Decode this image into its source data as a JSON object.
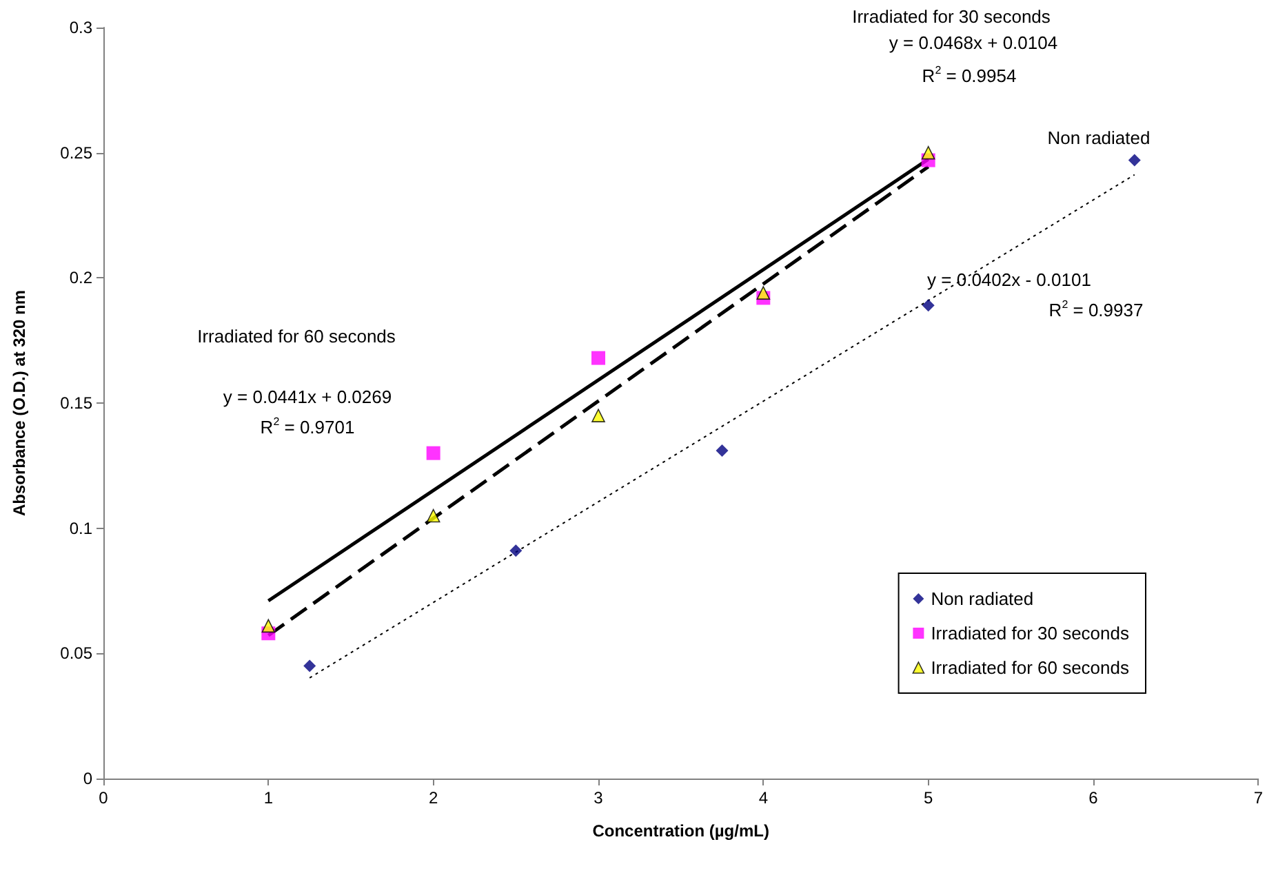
{
  "chart_data": {
    "type": "scatter",
    "xlabel": "Concentration (µg/mL)",
    "ylabel": "Absorbance (O.D.) at 320 nm",
    "xlim": [
      0,
      7
    ],
    "xticks": [
      0,
      1,
      2,
      3,
      4,
      5,
      6,
      7
    ],
    "ylim": [
      0,
      0.3
    ],
    "yticks": [
      0,
      0.05,
      0.1,
      0.15,
      0.2,
      0.25,
      0.3
    ],
    "grid": false,
    "legend": "bottom right",
    "series": [
      {
        "name": "Non radiated",
        "marker": "diamond",
        "color": "#000080",
        "x": [
          1.25,
          2.5,
          3.75,
          5,
          6.25
        ],
        "values": [
          0.045,
          0.091,
          0.131,
          0.189,
          0.247
        ]
      },
      {
        "name": "Irradiated for 30 seconds",
        "marker": "square",
        "color": "#ff00ff",
        "x": [
          1,
          2,
          3,
          4,
          5
        ],
        "values": [
          0.058,
          0.13,
          0.168,
          0.192,
          0.247
        ]
      },
      {
        "name": "Irradiated for 60 seconds",
        "marker": "triangle",
        "color": "#ffff00",
        "x": [
          1,
          2,
          3,
          4,
          5
        ],
        "values": [
          0.061,
          0.105,
          0.145,
          0.194,
          0.25
        ]
      },
      {
        "type": "line",
        "marker": "none",
        "line_style": "dotted",
        "color": "#000000",
        "x": [
          1.25,
          6.25
        ],
        "values": [
          0.0402,
          0.2412
        ]
      },
      {
        "type": "line",
        "marker": "none",
        "line_style": "dashed",
        "color": "#000000",
        "x": [
          1,
          5
        ],
        "values": [
          0.0572,
          0.2444
        ]
      },
      {
        "type": "line",
        "marker": "none",
        "line_style": "solid",
        "color": "#000000",
        "x": [
          1,
          5
        ],
        "values": [
          0.071,
          0.2474
        ]
      }
    ],
    "annotations": [
      "Irradiated for 30 seconds",
      "y = 0.0468x + 0.0104",
      "R$^{2}$ = 0.9954",
      "Irradiated for 60 seconds",
      "y = 0.0441x + 0.0269",
      "R$^{2}$ = 0.9701",
      "Non radiated",
      "y = 0.0402x - 0.0101",
      "R$^{2}$ = 0.9937"
    ]
  }
}
